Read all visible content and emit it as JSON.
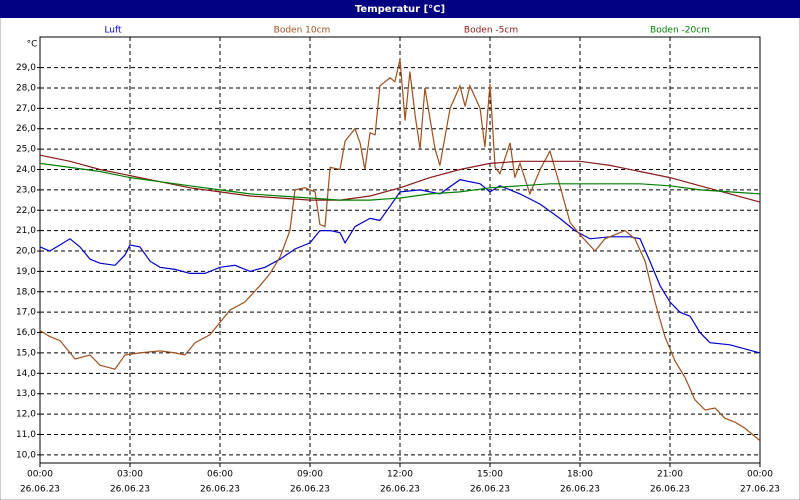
{
  "chart_data": {
    "type": "line",
    "title": "Temperatur [°C]",
    "y_unit": "°C",
    "grid": true,
    "xlim": [
      0,
      24
    ],
    "ylim": [
      9.6,
      30.5
    ],
    "xticks": [
      {
        "value": 0,
        "label": "00:00"
      },
      {
        "value": 3,
        "label": "03:00"
      },
      {
        "value": 6,
        "label": "06:00"
      },
      {
        "value": 9,
        "label": "09:00"
      },
      {
        "value": 12,
        "label": "12:00"
      },
      {
        "value": 15,
        "label": "15:00"
      },
      {
        "value": 18,
        "label": "18:00"
      },
      {
        "value": 21,
        "label": "21:00"
      },
      {
        "value": 24,
        "label": "00:00"
      }
    ],
    "xtick_dates": [
      "26.06.23",
      "26.06.23",
      "26.06.23",
      "26.06.23",
      "26.06.23",
      "26.06.23",
      "26.06.23",
      "26.06.23",
      "27.06.23"
    ],
    "yticks": [
      {
        "value": 10,
        "label": "10,0"
      },
      {
        "value": 11,
        "label": "11,0"
      },
      {
        "value": 12,
        "label": "12,0"
      },
      {
        "value": 13,
        "label": "13,0"
      },
      {
        "value": 14,
        "label": "14,0"
      },
      {
        "value": 15,
        "label": "15,0"
      },
      {
        "value": 16,
        "label": "16,0"
      },
      {
        "value": 17,
        "label": "17,0"
      },
      {
        "value": 18,
        "label": "18,0"
      },
      {
        "value": 19,
        "label": "19,0"
      },
      {
        "value": 20,
        "label": "20,0"
      },
      {
        "value": 21,
        "label": "21,0"
      },
      {
        "value": 22,
        "label": "22,0"
      },
      {
        "value": 23,
        "label": "23,0"
      },
      {
        "value": 24,
        "label": "24,0"
      },
      {
        "value": 25,
        "label": "25,0"
      },
      {
        "value": 26,
        "label": "26,0"
      },
      {
        "value": 27,
        "label": "27,0"
      },
      {
        "value": 28,
        "label": "28,0"
      },
      {
        "value": 29,
        "label": "29,0"
      }
    ],
    "series": [
      {
        "name": "Luft",
        "color": "#0000cc",
        "x": [
          0,
          0.33,
          0.67,
          1.0,
          1.33,
          1.67,
          2,
          2.5,
          2.83,
          3,
          3.33,
          3.67,
          4,
          4.5,
          5,
          5.5,
          6,
          6.5,
          7,
          7.5,
          8,
          8.5,
          9,
          9.33,
          9.67,
          10,
          10.17,
          10.5,
          11,
          11.33,
          11.67,
          12,
          12.67,
          13.33,
          14,
          14.67,
          15,
          15.33,
          16,
          16.67,
          17.33,
          17.83,
          18.33,
          19,
          19.67,
          20,
          20.33,
          20.67,
          21,
          21.33,
          21.67,
          22,
          22.33,
          23,
          23.5,
          24
        ],
        "values": [
          20.2,
          20.0,
          20.3,
          20.6,
          20.2,
          19.6,
          19.4,
          19.3,
          19.8,
          20.3,
          20.2,
          19.5,
          19.2,
          19.1,
          18.9,
          18.9,
          19.2,
          19.3,
          19.0,
          19.2,
          19.6,
          20.1,
          20.4,
          21.0,
          21.0,
          20.9,
          20.4,
          21.2,
          21.6,
          21.5,
          22.2,
          22.9,
          23.0,
          22.8,
          23.5,
          23.3,
          22.9,
          23.2,
          22.8,
          22.3,
          21.6,
          21.0,
          20.6,
          20.7,
          20.7,
          20.6,
          19.5,
          18.3,
          17.5,
          17.0,
          16.8,
          16.0,
          15.5,
          15.4,
          15.2,
          15.0
        ]
      },
      {
        "name": "Boden 10cm",
        "color": "#a0501e",
        "x": [
          0,
          0.33,
          0.67,
          1.17,
          1.67,
          2,
          2.5,
          2.83,
          3.33,
          4,
          4.5,
          4.83,
          5.17,
          5.67,
          6,
          6.33,
          6.83,
          7.33,
          7.67,
          8,
          8.33,
          8.5,
          8.83,
          9.17,
          9.33,
          9.5,
          9.67,
          10,
          10.17,
          10.5,
          10.67,
          10.83,
          11,
          11.17,
          11.33,
          11.67,
          11.83,
          12,
          12.17,
          12.33,
          12.5,
          12.67,
          12.83,
          13.17,
          13.33,
          13.67,
          14,
          14.17,
          14.33,
          14.67,
          14.83,
          15,
          15.17,
          15.33,
          15.67,
          15.83,
          16,
          16.33,
          16.67,
          17,
          17.33,
          17.67,
          18,
          18.5,
          18.83,
          19.17,
          19.5,
          19.83,
          20.17,
          20.5,
          20.83,
          21.17,
          21.5,
          21.83,
          22.17,
          22.5,
          22.83,
          23.17,
          23.5,
          24
        ],
        "values": [
          16.1,
          15.8,
          15.6,
          14.7,
          14.9,
          14.4,
          14.2,
          14.9,
          15.0,
          15.1,
          15.0,
          14.9,
          15.5,
          15.9,
          16.5,
          17.1,
          17.5,
          18.3,
          18.9,
          19.7,
          21.0,
          23.0,
          23.1,
          22.9,
          21.3,
          21.2,
          24.1,
          24.0,
          25.4,
          26.0,
          25.3,
          24.0,
          25.8,
          25.7,
          28.1,
          28.5,
          28.3,
          29.4,
          26.4,
          28.8,
          26.7,
          25.0,
          28.0,
          25.0,
          24.2,
          27.0,
          28.1,
          27.1,
          28.1,
          27.0,
          25.1,
          28.2,
          24.1,
          23.8,
          25.3,
          23.6,
          24.3,
          22.8,
          24.0,
          24.9,
          23.2,
          21.4,
          20.8,
          20.0,
          20.6,
          20.8,
          21.0,
          20.6,
          19.5,
          17.5,
          15.8,
          14.6,
          13.8,
          12.7,
          12.2,
          12.3,
          11.8,
          11.6,
          11.3,
          10.7
        ]
      },
      {
        "name": "Boden -5cm",
        "color": "#8b1a1a",
        "x": [
          0,
          1,
          2,
          3,
          4,
          5,
          6,
          7,
          8,
          9,
          10,
          11,
          12,
          13,
          14,
          15,
          16,
          17,
          18,
          19,
          20,
          21,
          22,
          23,
          24
        ],
        "values": [
          24.7,
          24.4,
          24.0,
          23.7,
          23.4,
          23.1,
          22.9,
          22.7,
          22.6,
          22.5,
          22.5,
          22.7,
          23.1,
          23.6,
          24.0,
          24.3,
          24.4,
          24.4,
          24.4,
          24.2,
          23.9,
          23.6,
          23.2,
          22.8,
          22.4
        ]
      },
      {
        "name": "Boden -20cm",
        "color": "#008000",
        "x": [
          0,
          1,
          2,
          3,
          4,
          5,
          6,
          7,
          8,
          9,
          10,
          11,
          12,
          13,
          14,
          15,
          16,
          17,
          18,
          19,
          20,
          21,
          22,
          23,
          24
        ],
        "values": [
          24.3,
          24.1,
          23.9,
          23.6,
          23.4,
          23.2,
          23.0,
          22.8,
          22.7,
          22.6,
          22.5,
          22.5,
          22.6,
          22.8,
          22.9,
          23.1,
          23.2,
          23.3,
          23.3,
          23.3,
          23.3,
          23.2,
          23.0,
          22.9,
          22.8
        ]
      }
    ]
  }
}
